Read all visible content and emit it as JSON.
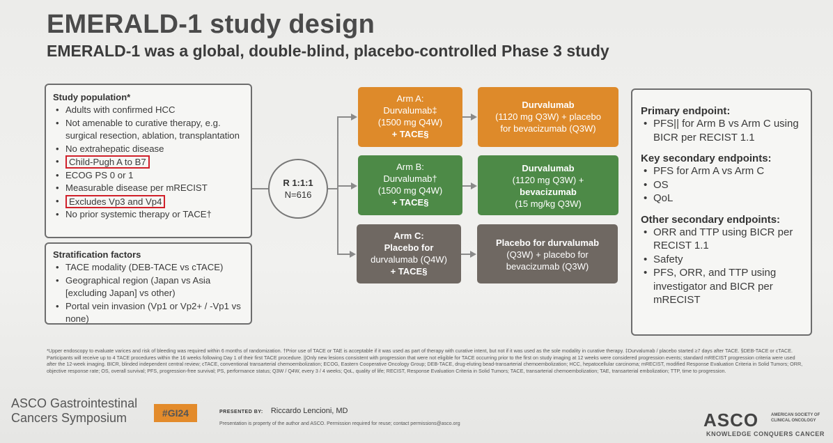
{
  "title": "EMERALD-1 study design",
  "subtitle": "EMERALD-1 was a global, double-blind, placebo-controlled Phase 3 study",
  "population": {
    "heading": "Study population*",
    "items": [
      "Adults with confirmed HCC",
      "Not amenable to curative therapy, e.g. surgical resection, ablation, transplantation",
      "No extrahepatic disease",
      "Child-Pugh A to B7",
      "ECOG PS 0 or 1",
      "Measurable disease per mRECIST",
      "Excludes Vp3 and Vp4",
      "No prior systemic therapy or TACE†"
    ]
  },
  "stratification": {
    "heading": "Stratification factors",
    "items": [
      "TACE modality (DEB-TACE vs cTACE)",
      "Geographical region (Japan vs Asia [excluding Japan] vs other)",
      "Portal vein invasion (Vp1 or Vp2+ / -Vp1 vs none)"
    ]
  },
  "randomization": {
    "ratio": "R 1:1:1",
    "n": "N=616"
  },
  "arms": {
    "a_first": [
      "Arm A:",
      "Durvalumab‡",
      "(1500 mg Q4W)",
      "+ TACE§"
    ],
    "b_first": [
      "Arm B:",
      "Durvalumab†",
      "(1500 mg Q4W)",
      "+ TACE§"
    ],
    "c_first": [
      "Arm C:",
      "Placebo for",
      "durvalumab (Q4W)",
      "+ TACE§"
    ],
    "a_second": [
      "Durvalumab",
      "(1120 mg Q3W) + placebo",
      "for bevacizumab (Q3W)"
    ],
    "b_second": [
      "Durvalumab",
      "(1120 mg Q3W) +",
      "bevacizumab",
      "(15 mg/kg Q3W)"
    ],
    "c_second": [
      "Placebo for durvalumab",
      "(Q3W) + placebo for",
      "bevacizumab (Q3W)"
    ]
  },
  "endpoints": {
    "primary_heading": "Primary endpoint:",
    "primary": [
      "PFS|| for Arm B vs Arm C using BICR per RECIST 1.1"
    ],
    "key_heading": "Key secondary endpoints:",
    "key": [
      "PFS for Arm A vs Arm C",
      "OS",
      "QoL"
    ],
    "other_heading": "Other secondary endpoints:",
    "other": [
      "ORR and TTP using BICR per RECIST 1.1",
      "Safety",
      "PFS, ORR, and TTP using investigator and BICR per mRECIST"
    ]
  },
  "footnote": "*Upper endoscopy to evaluate varices and risk of bleeding was required within 6 months of randomization. †Prior use of TACE or TAE is acceptable if it was used as part of therapy with curative intent, but not if it was used as the sole modality in curative therapy. ‡Durvalumab / placebo started ≥7 days after TACE. §DEB-TACE or cTACE. Participants will receive up to 4 TACE procedures within the 16 weeks following Day 1 of their first TACE procedure. ||Only new lesions consistent with progression that were not eligible for TACE occurring prior to the first on study imaging at 12 weeks were considered progression events; standard mRECIST progression criteria were used after the 12-week imaging. BICR, blinded independent central review; cTACE, conventional transarterial chemoembolization; ECOG, Eastern Cooperative Oncology Group; DEB-TACE, drug-eluting bead-transarterial chemoembolization; HCC, hepatocellular carcinoma; mRECIST, modified Response Evaluation Criteria in Solid Tumors; ORR, objective response rate; OS, overall survival; PFS, progression-free survival; PS, performance status; Q3W / Q4W, every 3 / 4 weeks; QoL, quality of life; RECIST, Response Evaluation Criteria in Solid Tumors; TACE, transarterial chemoembolization; TAE, transarterial embolization; TTP, time to progression.",
  "footer": {
    "symposium_line1": "ASCO Gastrointestinal",
    "symposium_line2": "Cancers Symposium",
    "hashtag": "#GI24",
    "presented_label": "PRESENTED BY:",
    "presenter": "Riccardo Lencioni, MD",
    "property": "Presentation is property of the author and ASCO. Permission required for reuse; contact permissions@asco.org",
    "asco": "ASCO",
    "asco_small": "AMERICAN SOCIETY OF CLINICAL ONCOLOGY",
    "knowledge": "KNOWLEDGE CONQUERS CANCER"
  },
  "colors": {
    "orange": "#de8a2a",
    "green": "#4d8a47",
    "gray": "#6f6862",
    "highlight": "#d0202a"
  }
}
